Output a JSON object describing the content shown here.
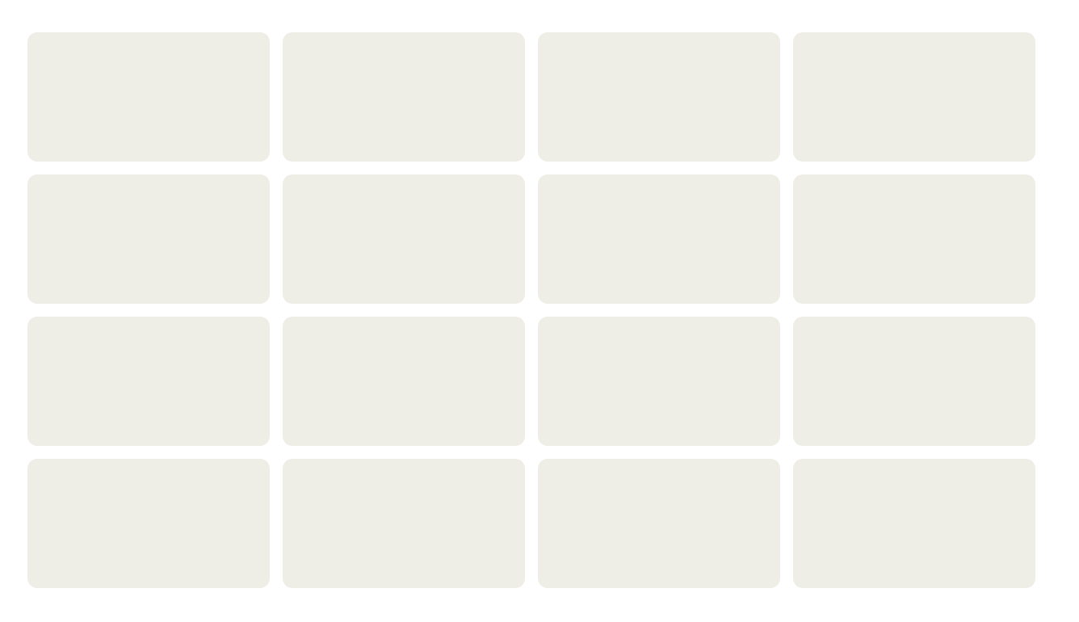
{
  "grid": {
    "rows": 4,
    "columns": 4,
    "cards": [
      {
        "id": "card-1"
      },
      {
        "id": "card-2"
      },
      {
        "id": "card-3"
      },
      {
        "id": "card-4"
      },
      {
        "id": "card-5"
      },
      {
        "id": "card-6"
      },
      {
        "id": "card-7"
      },
      {
        "id": "card-8"
      },
      {
        "id": "card-9"
      },
      {
        "id": "card-10"
      },
      {
        "id": "card-11"
      },
      {
        "id": "card-12"
      },
      {
        "id": "card-13"
      },
      {
        "id": "card-14"
      },
      {
        "id": "card-15"
      },
      {
        "id": "card-16"
      }
    ]
  },
  "colors": {
    "background": "#ffffff",
    "card": "#eeede6"
  }
}
